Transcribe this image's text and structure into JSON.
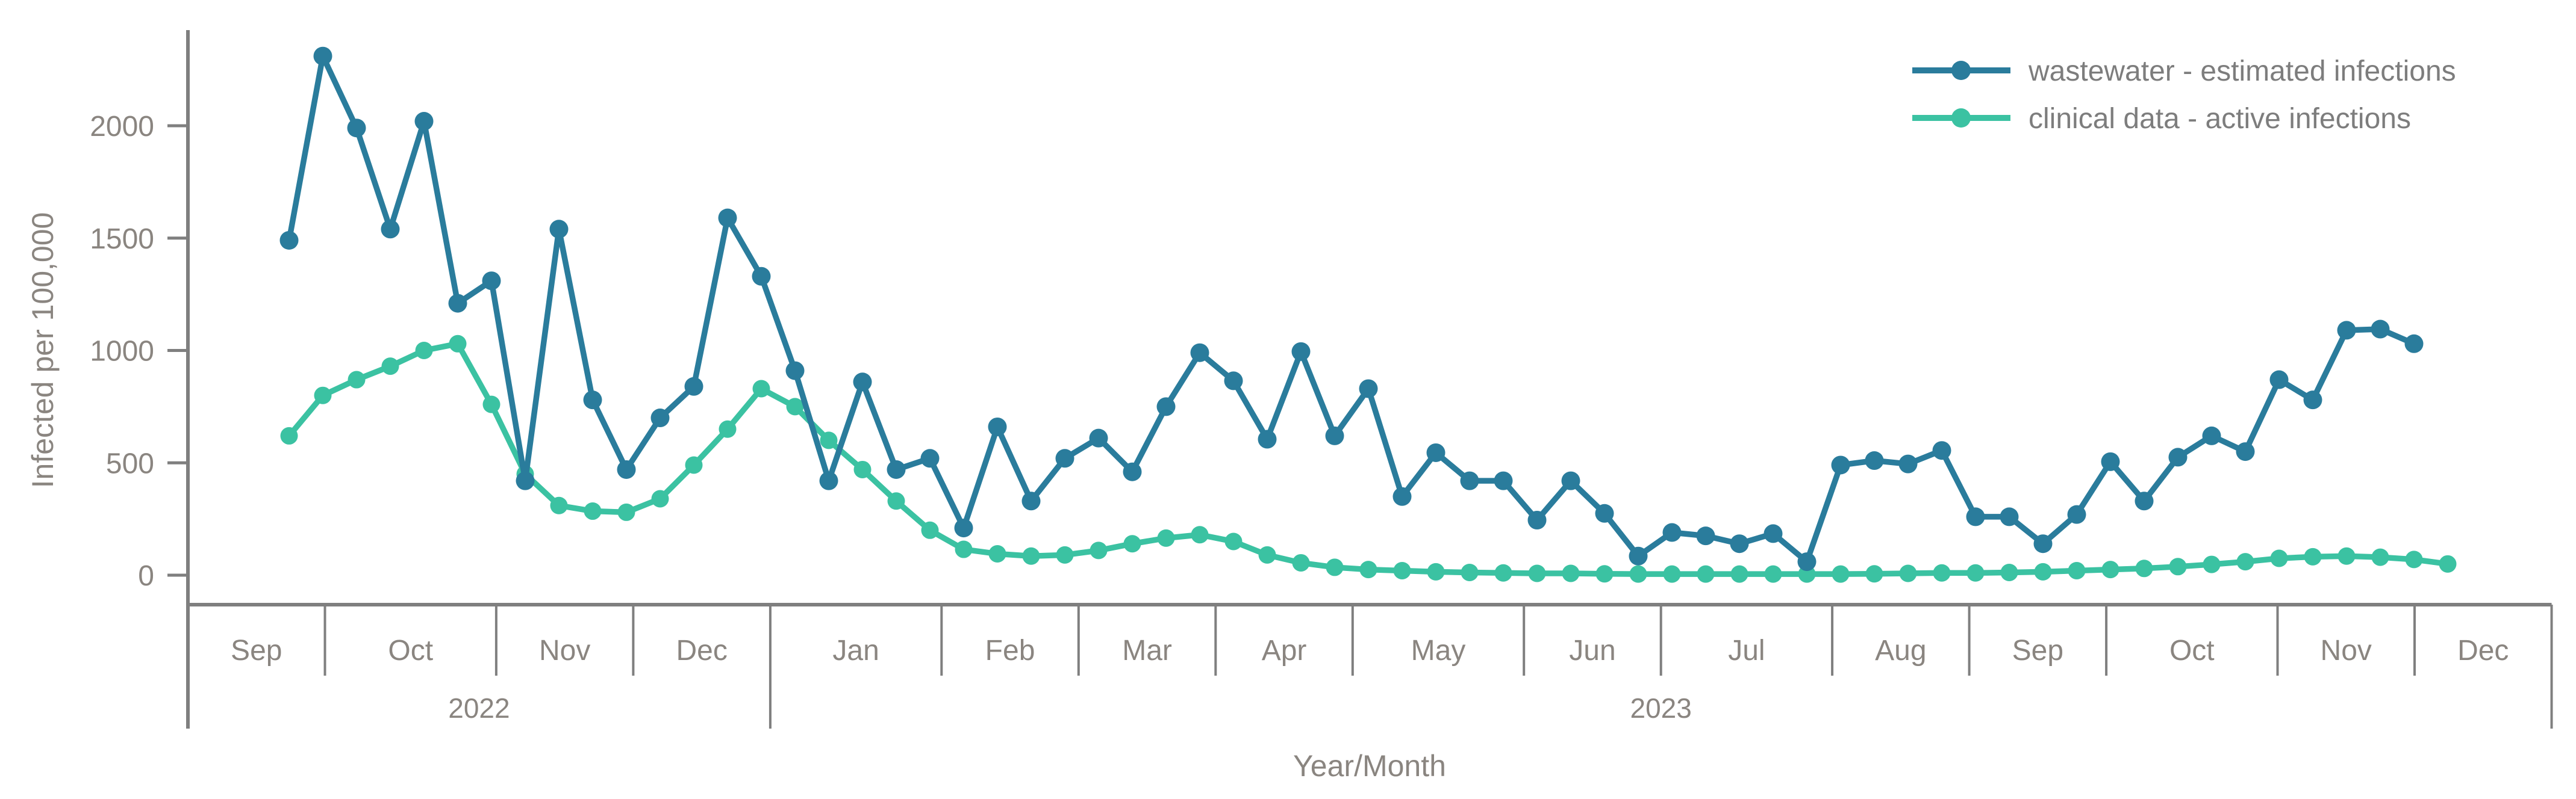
{
  "chart_data": {
    "type": "line",
    "title": "",
    "ylabel": "Infected per 100,000",
    "xlabel": "Year/Month",
    "y_ticks": [
      0,
      500,
      1000,
      1500,
      2000
    ],
    "ylim": [
      0,
      2430
    ],
    "grid": false,
    "legend_position": "top-right",
    "months": [
      {
        "label": "Sep",
        "year": "2022",
        "weeks": 4
      },
      {
        "label": "Oct",
        "year": "2022",
        "weeks": 5
      },
      {
        "label": "Nov",
        "year": "2022",
        "weeks": 4
      },
      {
        "label": "Dec",
        "year": "2022",
        "weeks": 4
      },
      {
        "label": "Jan",
        "year": "2023",
        "weeks": 5
      },
      {
        "label": "Feb",
        "year": "2023",
        "weeks": 4
      },
      {
        "label": "Mar",
        "year": "2023",
        "weeks": 4
      },
      {
        "label": "Apr",
        "year": "2023",
        "weeks": 4
      },
      {
        "label": "May",
        "year": "2023",
        "weeks": 5
      },
      {
        "label": "Jun",
        "year": "2023",
        "weeks": 4
      },
      {
        "label": "Jul",
        "year": "2023",
        "weeks": 5
      },
      {
        "label": "Aug",
        "year": "2023",
        "weeks": 4
      },
      {
        "label": "Sep",
        "year": "2023",
        "weeks": 4
      },
      {
        "label": "Oct",
        "year": "2023",
        "weeks": 5
      },
      {
        "label": "Nov",
        "year": "2023",
        "weeks": 4
      },
      {
        "label": "Dec",
        "year": "2023",
        "weeks": 4
      }
    ],
    "year_bands": [
      {
        "label": "2022",
        "month_count": 4
      },
      {
        "label": "2023",
        "month_count": 12
      }
    ],
    "series": [
      {
        "name": "wastewater - estimated infections",
        "color": "#2a7c9c",
        "values": [
          1490,
          2310,
          1990,
          1540,
          2020,
          1210,
          1310,
          420,
          1540,
          780,
          470,
          700,
          840,
          1590,
          1330,
          910,
          420,
          860,
          470,
          520,
          210,
          660,
          330,
          520,
          610,
          460,
          750,
          990,
          865,
          605,
          995,
          620,
          830,
          350,
          545,
          420,
          420,
          245,
          420,
          275,
          85,
          190,
          175,
          140,
          185,
          60,
          490,
          510,
          495,
          555,
          260,
          260,
          140,
          270,
          505,
          330,
          525,
          620,
          550,
          870,
          780,
          1090,
          1095,
          1030,
          null
        ]
      },
      {
        "name": "clinical data - active infections",
        "color": "#3bc2a2",
        "values": [
          620,
          800,
          870,
          930,
          1000,
          1030,
          760,
          450,
          310,
          285,
          280,
          340,
          490,
          650,
          830,
          750,
          600,
          470,
          330,
          200,
          115,
          95,
          85,
          90,
          110,
          140,
          165,
          180,
          150,
          90,
          55,
          35,
          25,
          20,
          15,
          12,
          10,
          8,
          8,
          6,
          5,
          5,
          5,
          5,
          5,
          5,
          5,
          6,
          8,
          10,
          10,
          12,
          15,
          20,
          25,
          30,
          38,
          48,
          60,
          75,
          82,
          85,
          80,
          70,
          50
        ]
      }
    ],
    "legend": [
      {
        "label": "wastewater - estimated infections",
        "color": "#2a7c9c"
      },
      {
        "label": "clinical data - active infections",
        "color": "#3bc2a2"
      }
    ],
    "colors": {
      "axis_line": "#7f7f7f",
      "axis_text": "#8a8580",
      "legend_text": "#7d7d7d",
      "background": "#ffffff"
    }
  }
}
